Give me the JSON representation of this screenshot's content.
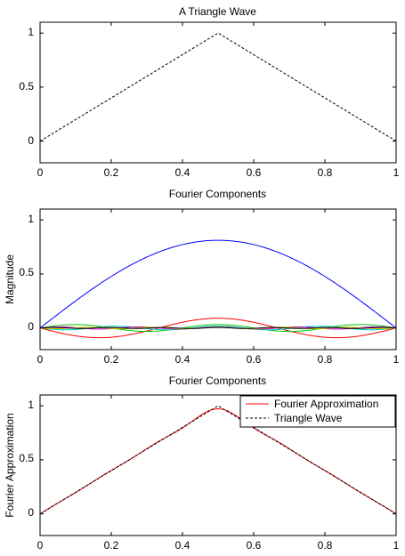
{
  "chart_data": [
    {
      "type": "line",
      "title": "A Triangle Wave",
      "xlabel": "",
      "ylabel": "",
      "xlim": [
        0,
        1
      ],
      "ylim": [
        -0.2,
        1.1
      ],
      "xticks": [
        "0",
        "0.2",
        "0.4",
        "0.6",
        "0.8",
        "1"
      ],
      "yticks": [
        "0",
        "0.5",
        "1"
      ],
      "series": [
        {
          "style": "dashed",
          "color": "#000000",
          "x": [
            0,
            0.5,
            1
          ],
          "y": [
            0,
            1,
            0
          ]
        }
      ]
    },
    {
      "type": "line",
      "title": "Fourier Components",
      "xlabel": "",
      "ylabel": "Magnitude",
      "xlim": [
        0,
        1
      ],
      "ylim": [
        -0.2,
        1.1
      ],
      "xticks": [
        "0",
        "0.2",
        "0.4",
        "0.6",
        "0.8",
        "1"
      ],
      "yticks": [
        "0",
        "0.5",
        "1"
      ],
      "series": [
        {
          "color": "#0000ff",
          "harmonic": 1,
          "amplitude": 0.811
        },
        {
          "color": "#ff0000",
          "harmonic": 3,
          "amplitude": -0.09
        },
        {
          "color": "#00cc00",
          "harmonic": 5,
          "amplitude": 0.032
        },
        {
          "color": "#00cccc",
          "harmonic": 7,
          "amplitude": -0.017
        },
        {
          "color": "#cc00cc",
          "harmonic": 9,
          "amplitude": 0.01
        },
        {
          "color": "#cccc00",
          "harmonic": 11,
          "amplitude": -0.007
        },
        {
          "color": "#000000",
          "harmonic": 13,
          "amplitude": 0.005
        }
      ]
    },
    {
      "type": "line",
      "title": "Fourier Components",
      "xlabel": "",
      "ylabel": "Fourier Approximation",
      "xlim": [
        0,
        1
      ],
      "ylim": [
        -0.2,
        1.1
      ],
      "xticks": [
        "0",
        "0.2",
        "0.4",
        "0.6",
        "0.8",
        "1"
      ],
      "yticks": [
        "0",
        "0.5",
        "1"
      ],
      "legend": {
        "placement": "top-right",
        "entries": [
          "Fourier Approximation",
          "Triangle Wave"
        ]
      },
      "series": [
        {
          "name": "Fourier Approximation",
          "color": "#ff0000",
          "style": "solid",
          "harmonics": [
            1,
            3,
            5,
            7,
            9,
            11,
            13
          ]
        },
        {
          "name": "Triangle Wave",
          "color": "#000000",
          "style": "dashed",
          "x": [
            0,
            0.5,
            1
          ],
          "y": [
            0,
            1,
            0
          ]
        }
      ]
    }
  ]
}
